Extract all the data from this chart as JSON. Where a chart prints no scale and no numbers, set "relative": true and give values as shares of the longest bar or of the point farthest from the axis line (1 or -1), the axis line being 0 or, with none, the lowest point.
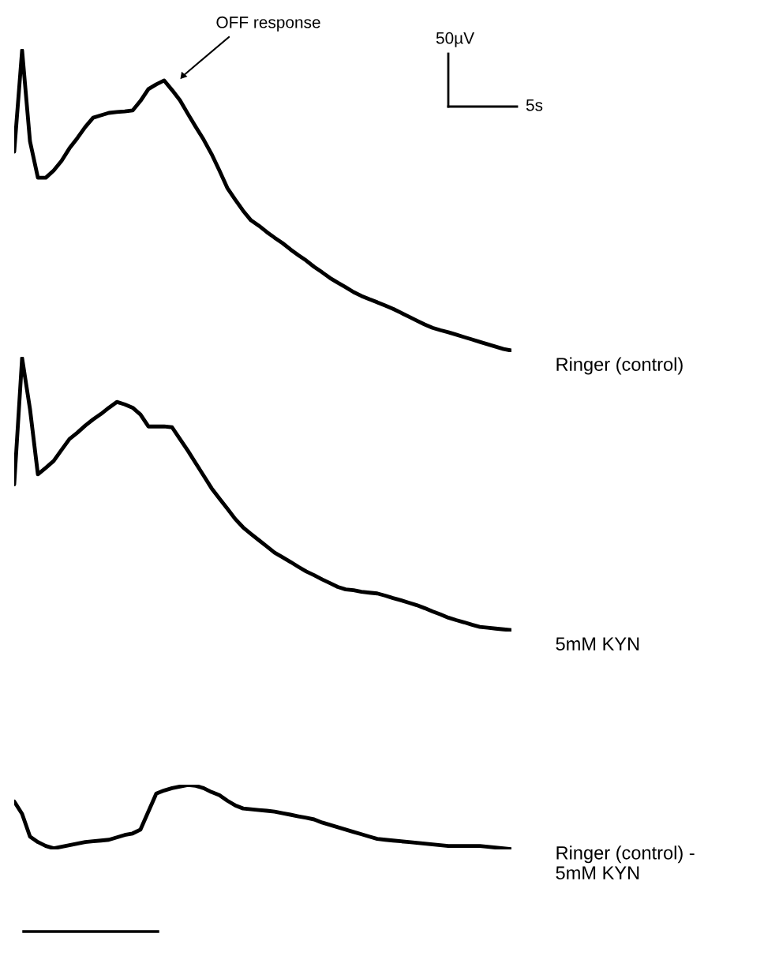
{
  "chart_data": [
    {
      "type": "line",
      "relative": true,
      "annotations": [
        "OFF response",
        "50µV",
        "5s"
      ],
      "categories": [
        null,
        null,
        null,
        null,
        null,
        null,
        null,
        null,
        null,
        null,
        null,
        null,
        null,
        null,
        null,
        null,
        null,
        null,
        null,
        null,
        null,
        null,
        null,
        null,
        null,
        null,
        null,
        null,
        null,
        null,
        null,
        null,
        null,
        null,
        null,
        null,
        null,
        null,
        null,
        null,
        null,
        null,
        null,
        null,
        null,
        null,
        null,
        null,
        null,
        null,
        null,
        null,
        null,
        null,
        null,
        null,
        null,
        null,
        null,
        null,
        null,
        null,
        null,
        null
      ],
      "series": [
        {
          "name": "Ringer (control)",
          "color": "#000000",
          "values": [
            0.663,
            1,
            0.697,
            0.576,
            0.576,
            0.6,
            0.632,
            0.674,
            0.708,
            0.745,
            0.776,
            0.784,
            0.792,
            0.795,
            0.797,
            0.8,
            0.832,
            0.871,
            0.887,
            0.9,
            0.868,
            0.834,
            0.789,
            0.745,
            0.703,
            0.655,
            0.6,
            0.542,
            0.503,
            0.466,
            0.434,
            0.416,
            0.395,
            0.376,
            0.358,
            0.337,
            0.318,
            0.3,
            0.279,
            0.261,
            0.242,
            0.226,
            0.211,
            0.195,
            0.182,
            0.171,
            0.161,
            0.15,
            0.139,
            0.126,
            0.113,
            0.1,
            0.087,
            0.076,
            0.068,
            0.061,
            0.053,
            0.045,
            0.037,
            0.029,
            0.021,
            0.013,
            0.005,
            0
          ]
        }
      ]
    },
    {
      "type": "line",
      "relative": true,
      "categories": [
        null,
        null,
        null,
        null,
        null,
        null,
        null,
        null,
        null,
        null,
        null,
        null,
        null,
        null,
        null,
        null,
        null,
        null,
        null,
        null,
        null,
        null,
        null,
        null,
        null,
        null,
        null,
        null,
        null,
        null,
        null,
        null,
        null,
        null,
        null,
        null,
        null,
        null,
        null,
        null,
        null,
        null,
        null,
        null,
        null,
        null,
        null,
        null,
        null,
        null,
        null,
        null,
        null,
        null,
        null,
        null,
        null,
        null,
        null,
        null,
        null,
        null,
        null,
        null
      ],
      "series": [
        {
          "name": "5mM KYN",
          "color": "#000000",
          "values": [
            0.536,
            1,
            0.813,
            0.573,
            0.597,
            0.622,
            0.663,
            0.703,
            0.726,
            0.752,
            0.775,
            0.795,
            0.818,
            0.839,
            0.83,
            0.818,
            0.793,
            0.749,
            0.749,
            0.749,
            0.746,
            0.703,
            0.66,
            0.614,
            0.568,
            0.522,
            0.484,
            0.447,
            0.409,
            0.378,
            0.354,
            0.331,
            0.308,
            0.285,
            0.268,
            0.251,
            0.233,
            0.216,
            0.202,
            0.187,
            0.173,
            0.159,
            0.15,
            0.147,
            0.141,
            0.138,
            0.135,
            0.127,
            0.118,
            0.11,
            0.101,
            0.092,
            0.081,
            0.069,
            0.058,
            0.046,
            0.037,
            0.029,
            0.02,
            0.012,
            0.009,
            0.006,
            0.003,
            0
          ]
        }
      ]
    },
    {
      "type": "line",
      "relative": true,
      "categories": [
        null,
        null,
        null,
        null,
        null,
        null,
        null,
        null,
        null,
        null,
        null,
        null,
        null,
        null,
        null,
        null,
        null,
        null,
        null,
        null,
        null,
        null,
        null,
        null,
        null,
        null,
        null,
        null,
        null,
        null,
        null,
        null,
        null,
        null,
        null,
        null,
        null,
        null,
        null,
        null,
        null,
        null,
        null,
        null,
        null,
        null,
        null,
        null,
        null,
        null,
        null,
        null,
        null,
        null,
        null,
        null,
        null,
        null,
        null,
        null,
        null,
        null,
        null,
        null
      ],
      "series": [
        {
          "name": "Ringer (control) -\n5mM KYN",
          "color": "#000000",
          "values": [
            0.744,
            0.549,
            0.195,
            0.11,
            0.049,
            0.012,
            0.037,
            0.061,
            0.085,
            0.11,
            0.122,
            0.134,
            0.146,
            0.183,
            0.22,
            0.244,
            0.305,
            0.585,
            0.866,
            0.915,
            0.951,
            0.976,
            1,
            0.988,
            0.951,
            0.89,
            0.841,
            0.756,
            0.683,
            0.634,
            0.622,
            0.61,
            0.598,
            0.585,
            0.561,
            0.537,
            0.512,
            0.488,
            0.463,
            0.415,
            0.378,
            0.341,
            0.305,
            0.268,
            0.232,
            0.195,
            0.159,
            0.146,
            0.134,
            0.122,
            0.11,
            0.098,
            0.085,
            0.073,
            0.061,
            0.049,
            0.049,
            0.049,
            0.049,
            0.049,
            0.037,
            0.024,
            0.012,
            0
          ]
        }
      ]
    }
  ]
}
